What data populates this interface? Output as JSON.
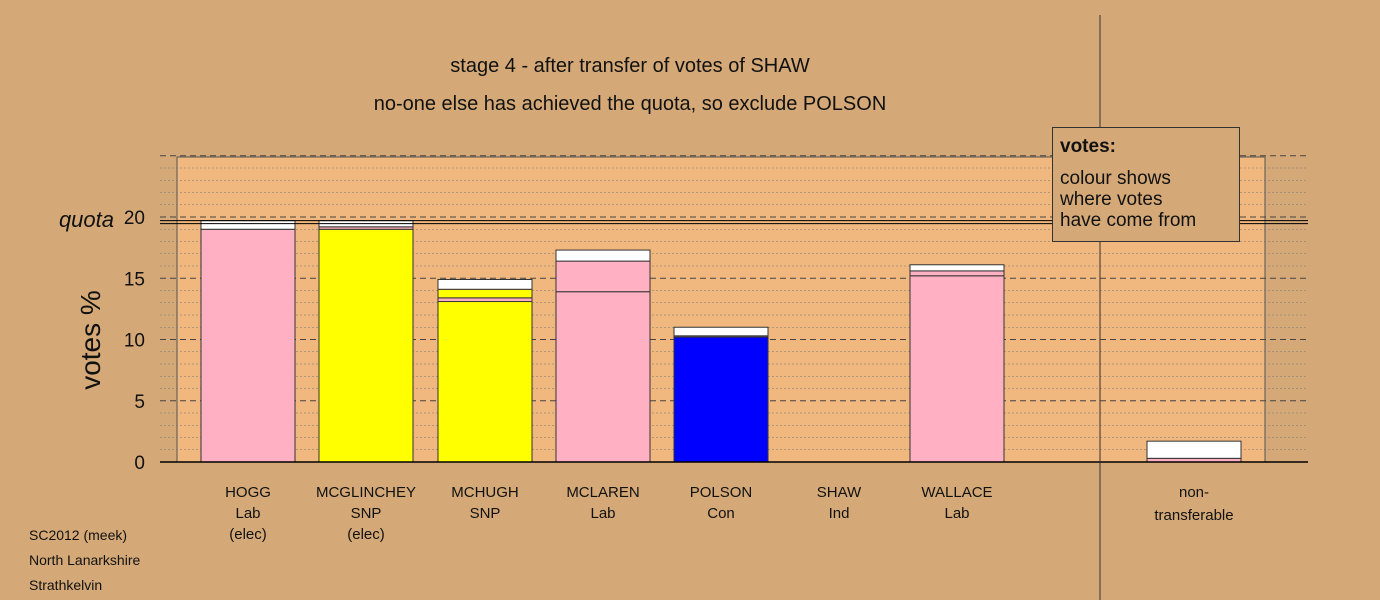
{
  "titles": {
    "line1": "stage 4 - after transfer of votes of SHAW",
    "line2": "no-one else has achieved the quota, so exclude POLSON"
  },
  "legend": {
    "title": "votes:",
    "lines": [
      "colour shows",
      "where votes",
      "have come from"
    ]
  },
  "footer": {
    "line1": "SC2012 (meek)",
    "line2": "North Lanarkshire",
    "line3": "Strathkelvin"
  },
  "colors": {
    "background": "#d4a977",
    "plot_area": "#f0b77e",
    "Lab": "#ffb0c2",
    "SNP": "#ffff00",
    "Con": "#0000ff",
    "transfer": "#ffffff"
  },
  "chart_data": {
    "type": "bar",
    "stacked": true,
    "ylabel": "votes %",
    "ylim": [
      0,
      25
    ],
    "yticks": [
      0,
      5,
      10,
      15,
      20
    ],
    "quota": {
      "label": "quota",
      "value": 19.7
    },
    "grid": true,
    "categories": [
      {
        "name": "HOGG",
        "party": "Lab",
        "note": "(elec)"
      },
      {
        "name": "MCGLINCHEY",
        "party": "SNP",
        "note": "(elec)"
      },
      {
        "name": "MCHUGH",
        "party": "SNP",
        "note": ""
      },
      {
        "name": "MCLAREN",
        "party": "Lab",
        "note": ""
      },
      {
        "name": "POLSON",
        "party": "Con",
        "note": ""
      },
      {
        "name": "SHAW",
        "party": "Ind",
        "note": ""
      },
      {
        "name": "WALLACE",
        "party": "Lab",
        "note": ""
      }
    ],
    "nontransferable": {
      "label_line1": "non-",
      "label_line2": "transferable"
    },
    "bars": [
      {
        "segments": [
          {
            "value": 19.0,
            "color": "#ffb0c2"
          },
          {
            "value": 0.7,
            "color": "#ffffff"
          }
        ]
      },
      {
        "segments": [
          {
            "value": 19.0,
            "color": "#ffff00"
          },
          {
            "value": 0.2,
            "color": "#ffb0c2"
          },
          {
            "value": 0.5,
            "color": "#ffffff"
          }
        ]
      },
      {
        "segments": [
          {
            "value": 13.1,
            "color": "#ffff00"
          },
          {
            "value": 0.3,
            "color": "#ffb0c2"
          },
          {
            "value": 0.7,
            "color": "#ffff00"
          },
          {
            "value": 0.8,
            "color": "#ffffff"
          }
        ]
      },
      {
        "segments": [
          {
            "value": 13.9,
            "color": "#ffb0c2"
          },
          {
            "value": 2.5,
            "color": "#ffb0c2"
          },
          {
            "value": 0.9,
            "color": "#ffffff"
          }
        ]
      },
      {
        "segments": [
          {
            "value": 10.2,
            "color": "#0000ff"
          },
          {
            "value": 0.1,
            "color": "#ffb0c2"
          },
          {
            "value": 0.7,
            "color": "#ffffff"
          }
        ]
      },
      {
        "segments": []
      },
      {
        "segments": [
          {
            "value": 15.2,
            "color": "#ffb0c2"
          },
          {
            "value": 0.4,
            "color": "#ffb0c2"
          },
          {
            "value": 0.5,
            "color": "#ffffff"
          }
        ]
      },
      {
        "segments": [
          {
            "value": 0.3,
            "color": "#ffb0c2"
          },
          {
            "value": 1.4,
            "color": "#ffffff"
          }
        ]
      }
    ]
  }
}
